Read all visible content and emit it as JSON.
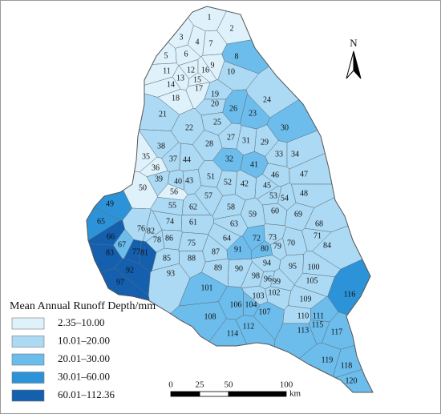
{
  "north_label": "N",
  "legend": {
    "title": "Mean Annual Runoff Depth/mm",
    "classes": [
      {
        "label": "2.35–10.00",
        "color": "#dff1fa"
      },
      {
        "label": "10.01–20.00",
        "color": "#acd9f3"
      },
      {
        "label": "20.01–30.00",
        "color": "#6cbcec"
      },
      {
        "label": "30.01–60.00",
        "color": "#2c93d8"
      },
      {
        "label": "60.01–112.36",
        "color": "#145fae"
      }
    ]
  },
  "scale_bar": {
    "ticks": [
      0,
      25,
      50,
      100
    ],
    "unit": "km"
  },
  "subbasins": [
    {
      "id": 1,
      "class": 0
    },
    {
      "id": 2,
      "class": 0
    },
    {
      "id": 3,
      "class": 0
    },
    {
      "id": 4,
      "class": 0
    },
    {
      "id": 5,
      "class": 0
    },
    {
      "id": 6,
      "class": 0
    },
    {
      "id": 7,
      "class": 0
    },
    {
      "id": 8,
      "class": 2
    },
    {
      "id": 9,
      "class": 0
    },
    {
      "id": 10,
      "class": 1
    },
    {
      "id": 11,
      "class": 0
    },
    {
      "id": 12,
      "class": 0
    },
    {
      "id": 13,
      "class": 0
    },
    {
      "id": 14,
      "class": 0
    },
    {
      "id": 15,
      "class": 0
    },
    {
      "id": 16,
      "class": 0
    },
    {
      "id": 17,
      "class": 0
    },
    {
      "id": 18,
      "class": 0
    },
    {
      "id": 19,
      "class": 1
    },
    {
      "id": 20,
      "class": 1
    },
    {
      "id": 21,
      "class": 1
    },
    {
      "id": 22,
      "class": 1
    },
    {
      "id": 23,
      "class": 2
    },
    {
      "id": 24,
      "class": 1
    },
    {
      "id": 25,
      "class": 1
    },
    {
      "id": 26,
      "class": 2
    },
    {
      "id": 27,
      "class": 1
    },
    {
      "id": 28,
      "class": 1
    },
    {
      "id": 29,
      "class": 1
    },
    {
      "id": 30,
      "class": 2
    },
    {
      "id": 31,
      "class": 1
    },
    {
      "id": 32,
      "class": 2
    },
    {
      "id": 33,
      "class": 1
    },
    {
      "id": 34,
      "class": 1
    },
    {
      "id": 35,
      "class": 0
    },
    {
      "id": 36,
      "class": 0
    },
    {
      "id": 37,
      "class": 1
    },
    {
      "id": 38,
      "class": 1
    },
    {
      "id": 39,
      "class": 1
    },
    {
      "id": 40,
      "class": 1
    },
    {
      "id": 41,
      "class": 2
    },
    {
      "id": 42,
      "class": 1
    },
    {
      "id": 43,
      "class": 1
    },
    {
      "id": 44,
      "class": 1
    },
    {
      "id": 45,
      "class": 1
    },
    {
      "id": 46,
      "class": 1
    },
    {
      "id": 47,
      "class": 1
    },
    {
      "id": 48,
      "class": 1
    },
    {
      "id": 49,
      "class": 3
    },
    {
      "id": 50,
      "class": 0
    },
    {
      "id": 51,
      "class": 1
    },
    {
      "id": 52,
      "class": 1
    },
    {
      "id": 53,
      "class": 1
    },
    {
      "id": 54,
      "class": 1
    },
    {
      "id": 55,
      "class": 1
    },
    {
      "id": 56,
      "class": 0
    },
    {
      "id": 57,
      "class": 1
    },
    {
      "id": 58,
      "class": 1
    },
    {
      "id": 59,
      "class": 1
    },
    {
      "id": 60,
      "class": 1
    },
    {
      "id": 61,
      "class": 1
    },
    {
      "id": 62,
      "class": 1
    },
    {
      "id": 63,
      "class": 1
    },
    {
      "id": 64,
      "class": 1
    },
    {
      "id": 65,
      "class": 3
    },
    {
      "id": 66,
      "class": 4
    },
    {
      "id": 67,
      "class": 2
    },
    {
      "id": 68,
      "class": 1
    },
    {
      "id": 69,
      "class": 1
    },
    {
      "id": 70,
      "class": 1
    },
    {
      "id": 71,
      "class": 1
    },
    {
      "id": 72,
      "class": 2
    },
    {
      "id": 73,
      "class": 1
    },
    {
      "id": 74,
      "class": 1
    },
    {
      "id": 75,
      "class": 1
    },
    {
      "id": 76,
      "class": 1
    },
    {
      "id": 77,
      "class": 4
    },
    {
      "id": 78,
      "class": 1
    },
    {
      "id": 79,
      "class": 1
    },
    {
      "id": 80,
      "class": 2
    },
    {
      "id": 81,
      "class": 4
    },
    {
      "id": 82,
      "class": 1
    },
    {
      "id": 83,
      "class": 4
    },
    {
      "id": 84,
      "class": 1
    },
    {
      "id": 85,
      "class": 1
    },
    {
      "id": 86,
      "class": 1
    },
    {
      "id": 87,
      "class": 1
    },
    {
      "id": 88,
      "class": 1
    },
    {
      "id": 89,
      "class": 1
    },
    {
      "id": 90,
      "class": 1
    },
    {
      "id": 91,
      "class": 2
    },
    {
      "id": 92,
      "class": 4
    },
    {
      "id": 93,
      "class": 1
    },
    {
      "id": 94,
      "class": 1
    },
    {
      "id": 95,
      "class": 1
    },
    {
      "id": 96,
      "class": 1
    },
    {
      "id": 97,
      "class": 4
    },
    {
      "id": 98,
      "class": 1
    },
    {
      "id": 99,
      "class": 1
    },
    {
      "id": 100,
      "class": 1
    },
    {
      "id": 101,
      "class": 2
    },
    {
      "id": 102,
      "class": 1
    },
    {
      "id": 103,
      "class": 1
    },
    {
      "id": 104,
      "class": 2
    },
    {
      "id": 105,
      "class": 1
    },
    {
      "id": 106,
      "class": 2
    },
    {
      "id": 107,
      "class": 2
    },
    {
      "id": 108,
      "class": 2
    },
    {
      "id": 109,
      "class": 1
    },
    {
      "id": 110,
      "class": 1
    },
    {
      "id": 111,
      "class": 2
    },
    {
      "id": 112,
      "class": 2
    },
    {
      "id": 113,
      "class": 2
    },
    {
      "id": 114,
      "class": 2
    },
    {
      "id": 115,
      "class": 2
    },
    {
      "id": 116,
      "class": 3
    },
    {
      "id": 117,
      "class": 2
    },
    {
      "id": 118,
      "class": 2
    },
    {
      "id": 119,
      "class": 2
    },
    {
      "id": 120,
      "class": 2
    }
  ]
}
